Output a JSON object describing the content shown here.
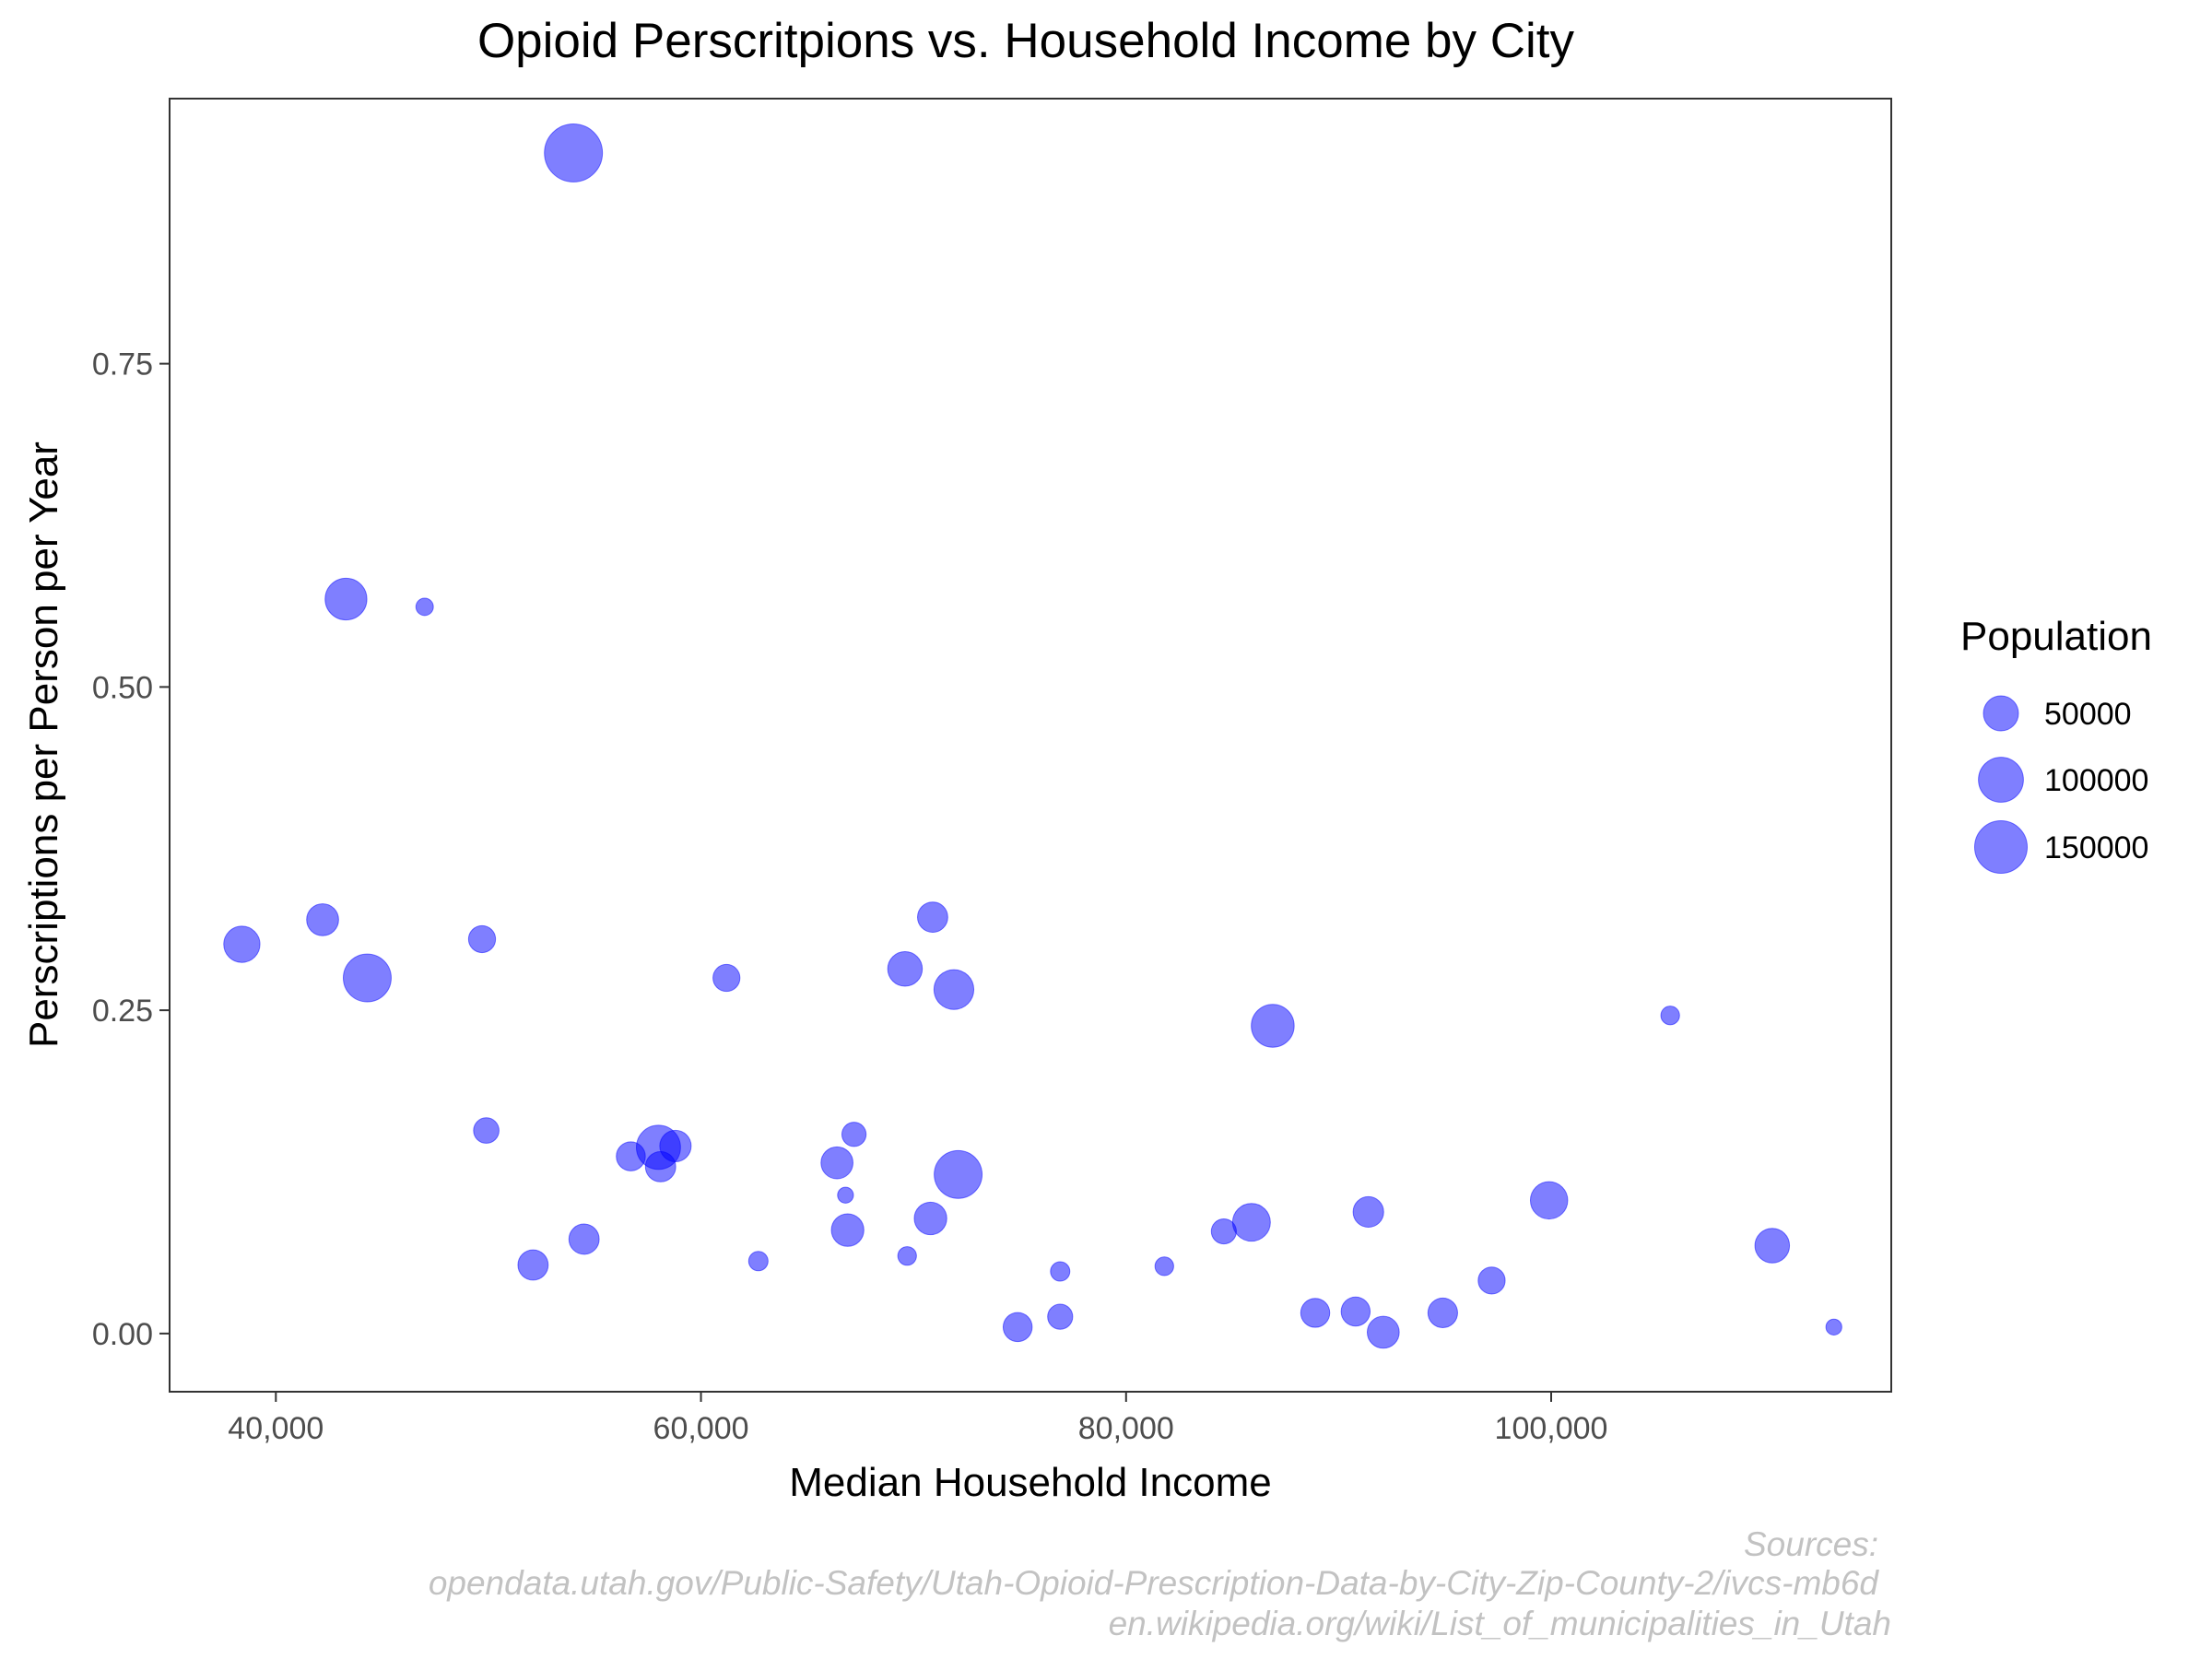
{
  "chart_data": {
    "type": "scatter",
    "title": "Opioid Perscritpions vs. Household Income by City",
    "xlabel": "Median Household Income",
    "ylabel": "Perscriptions per Person per Year",
    "xlim": [
      35000,
      116000
    ],
    "ylim": [
      -0.045,
      0.955
    ],
    "x_ticks": [
      40000,
      60000,
      80000,
      100000
    ],
    "x_tick_labels": [
      "40,000",
      "60,000",
      "80,000",
      "100,000"
    ],
    "y_ticks": [
      0,
      0.25,
      0.5,
      0.75
    ],
    "y_tick_labels": [
      "0.00",
      "0.25",
      "0.50",
      "0.75"
    ],
    "grid": false,
    "legend": {
      "title": "Population",
      "position": "right",
      "entries": [
        {
          "label": "50000",
          "value": 50000
        },
        {
          "label": "100000",
          "value": 100000
        },
        {
          "label": "150000",
          "value": 150000
        }
      ]
    },
    "point_color": "#0000FF",
    "point_opacity": 0.5,
    "size_by": "population",
    "points": [
      {
        "x": 54000,
        "y": 0.913,
        "population": 192000
      },
      {
        "x": 43300,
        "y": 0.568,
        "population": 82000
      },
      {
        "x": 47000,
        "y": 0.562,
        "population": 3500
      },
      {
        "x": 38400,
        "y": 0.301,
        "population": 55000
      },
      {
        "x": 42200,
        "y": 0.32,
        "population": 38000
      },
      {
        "x": 44300,
        "y": 0.275,
        "population": 118000
      },
      {
        "x": 49700,
        "y": 0.305,
        "population": 22000
      },
      {
        "x": 61200,
        "y": 0.275,
        "population": 22000
      },
      {
        "x": 70900,
        "y": 0.322,
        "population": 32000
      },
      {
        "x": 69600,
        "y": 0.282,
        "population": 48000
      },
      {
        "x": 71900,
        "y": 0.266,
        "population": 72000
      },
      {
        "x": 86900,
        "y": 0.238,
        "population": 88000
      },
      {
        "x": 105600,
        "y": 0.246,
        "population": 5000
      },
      {
        "x": 49900,
        "y": 0.157,
        "population": 18000
      },
      {
        "x": 56700,
        "y": 0.137,
        "population": 28000
      },
      {
        "x": 58000,
        "y": 0.144,
        "population": 95000
      },
      {
        "x": 58100,
        "y": 0.129,
        "population": 32000
      },
      {
        "x": 58800,
        "y": 0.145,
        "population": 36000
      },
      {
        "x": 66400,
        "y": 0.132,
        "population": 38000
      },
      {
        "x": 67200,
        "y": 0.154,
        "population": 15000
      },
      {
        "x": 66800,
        "y": 0.107,
        "population": 2000
      },
      {
        "x": 72100,
        "y": 0.123,
        "population": 118000
      },
      {
        "x": 70800,
        "y": 0.089,
        "population": 40000
      },
      {
        "x": 66900,
        "y": 0.08,
        "population": 40000
      },
      {
        "x": 54500,
        "y": 0.073,
        "population": 32000
      },
      {
        "x": 52100,
        "y": 0.053,
        "population": 32000
      },
      {
        "x": 62700,
        "y": 0.056,
        "population": 6000
      },
      {
        "x": 69700,
        "y": 0.06,
        "population": 5000
      },
      {
        "x": 85900,
        "y": 0.086,
        "population": 62000
      },
      {
        "x": 84600,
        "y": 0.079,
        "population": 17000
      },
      {
        "x": 91400,
        "y": 0.094,
        "population": 33000
      },
      {
        "x": 99900,
        "y": 0.103,
        "population": 60000
      },
      {
        "x": 110400,
        "y": 0.068,
        "population": 48000
      },
      {
        "x": 97200,
        "y": 0.041,
        "population": 22000
      },
      {
        "x": 81800,
        "y": 0.052,
        "population": 5000
      },
      {
        "x": 76900,
        "y": 0.048,
        "population": 6000
      },
      {
        "x": 76900,
        "y": 0.013,
        "population": 17000
      },
      {
        "x": 74900,
        "y": 0.005,
        "population": 28000
      },
      {
        "x": 88900,
        "y": 0.016,
        "population": 28000
      },
      {
        "x": 90800,
        "y": 0.017,
        "population": 28000
      },
      {
        "x": 92100,
        "y": 0.001,
        "population": 38000
      },
      {
        "x": 94900,
        "y": 0.016,
        "population": 30000
      },
      {
        "x": 113300,
        "y": 0.005,
        "population": 2000
      }
    ]
  },
  "sources": {
    "heading": "Sources:",
    "line1": "opendata.utah.gov/Public-Safety/Utah-Opioid-Prescription-Data-by-City-Zip-County-2/ivcs-mb6d",
    "line2": "en.wikipedia.org/wiki/List_of_municipalities_in_Utah"
  }
}
